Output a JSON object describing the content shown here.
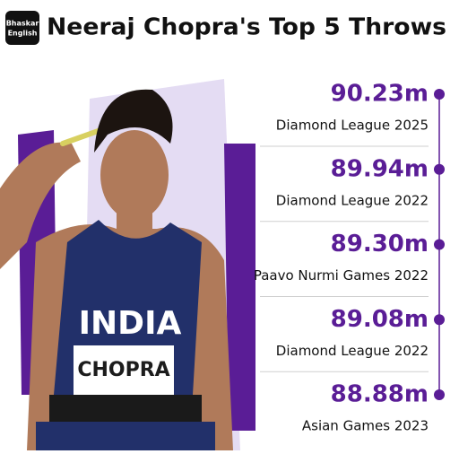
{
  "header": {
    "logo": [
      "Bhaskar",
      "English"
    ],
    "title": "Neeraj Chopra's Top 5 Throws"
  },
  "throws": [
    {
      "distance": "90.23m",
      "event": "Diamond League 2025"
    },
    {
      "distance": "89.94m",
      "event": "Diamond League 2022"
    },
    {
      "distance": "89.30m",
      "event": "Paavo Nurmi Games 2022"
    },
    {
      "distance": "89.08m",
      "event": "Diamond League 2022"
    },
    {
      "distance": "88.88m",
      "event": "Asian Games 2023"
    }
  ],
  "photo": {
    "jersey": "INDIA",
    "bib": "CHOPRA"
  }
}
